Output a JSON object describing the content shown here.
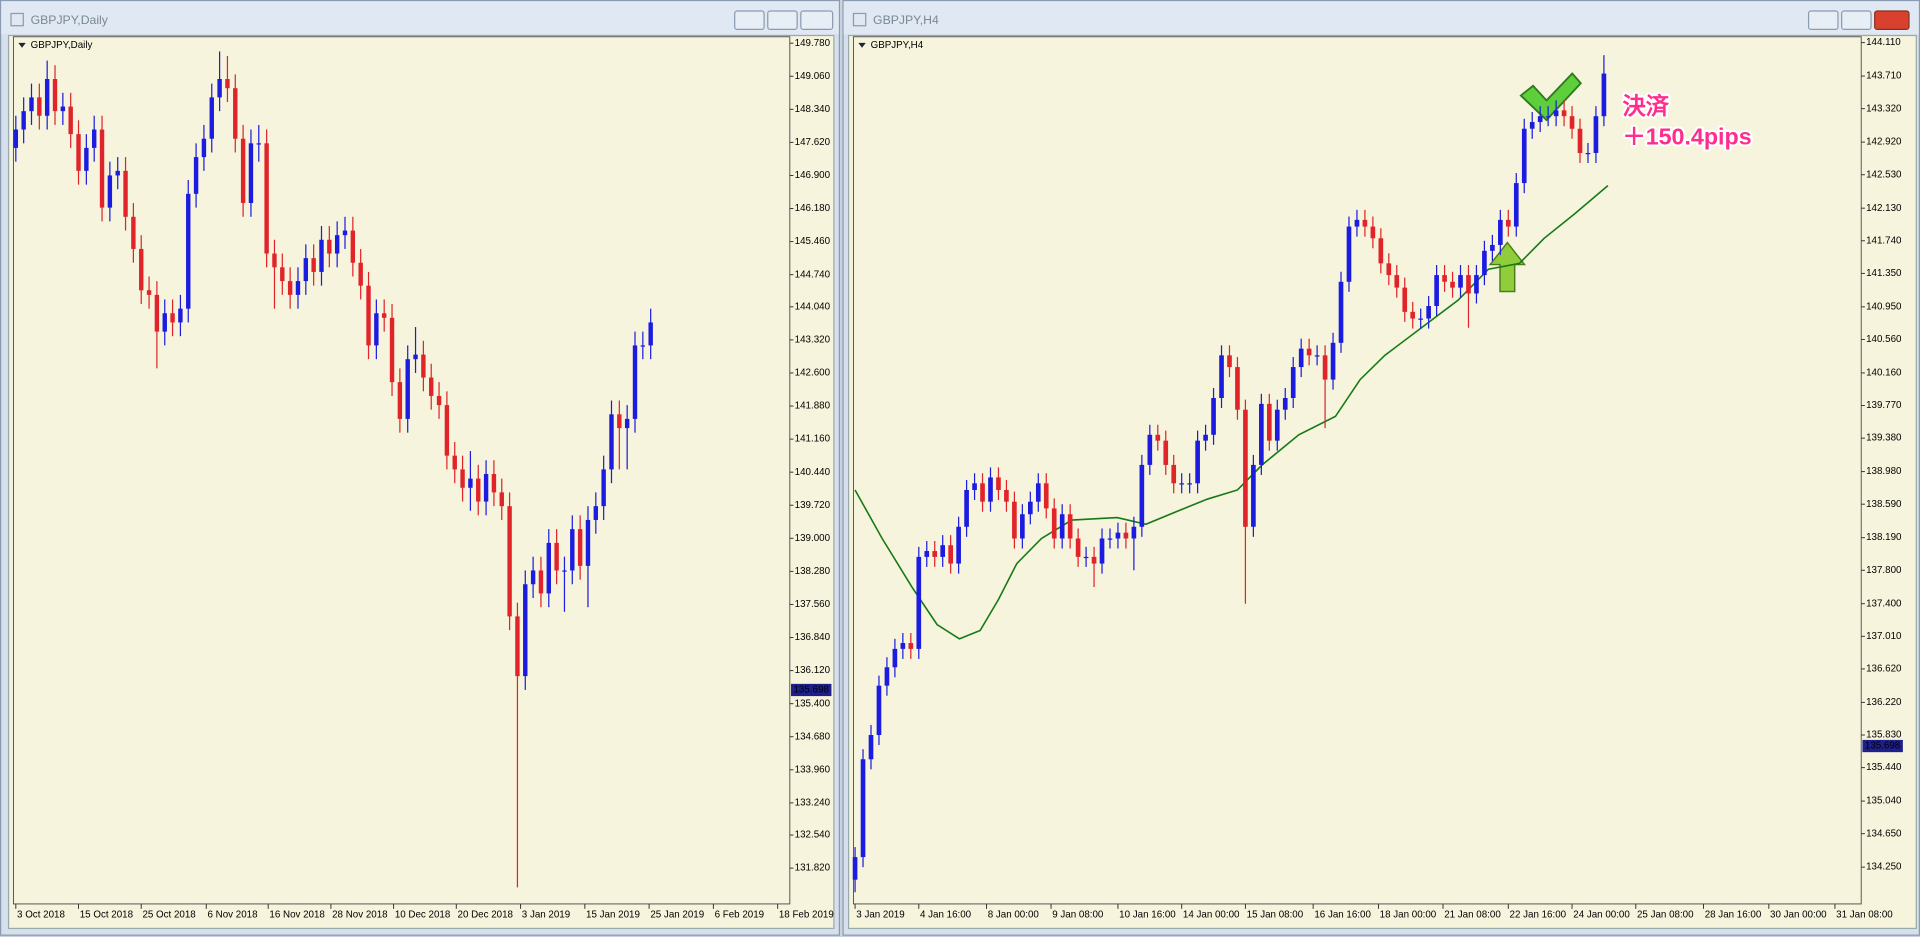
{
  "windows": [
    {
      "title": "GBPJPY,Daily"
    },
    {
      "title": "GBPJPY,H4"
    }
  ],
  "chart_data": [
    {
      "type": "candlestick",
      "label": "GBPJPY,Daily",
      "up_color": "#1c1ce0",
      "down_color": "#e0242a",
      "xlim": [
        -0.3,
        98.75
      ],
      "ylim": [
        131.04,
        149.92
      ],
      "xticks": [
        {
          "value": 0,
          "label": "3 Oct 2018"
        },
        {
          "value": 8,
          "label": "15 Oct 2018"
        },
        {
          "value": 16,
          "label": "25 Oct 2018"
        },
        {
          "value": 24.3,
          "label": "6 Nov 2018"
        },
        {
          "value": 32.2,
          "label": "16 Nov 2018"
        },
        {
          "value": 40.2,
          "label": "28 Nov 2018"
        },
        {
          "value": 48.2,
          "label": "10 Dec 2018"
        },
        {
          "value": 56.2,
          "label": "20 Dec 2018"
        },
        {
          "value": 64.4,
          "label": "3 Jan 2019"
        },
        {
          "value": 72.6,
          "label": "15 Jan 2019"
        },
        {
          "value": 80.8,
          "label": "25 Jan 2019"
        },
        {
          "value": 89,
          "label": "6 Feb 2019"
        },
        {
          "value": 97.2,
          "label": "18 Feb 2019"
        }
      ],
      "yticks": [
        {
          "value": 149.78,
          "label": "149.780"
        },
        {
          "value": 149.06,
          "label": "149.060"
        },
        {
          "value": 148.34,
          "label": "148.340"
        },
        {
          "value": 147.62,
          "label": "147.620"
        },
        {
          "value": 146.9,
          "label": "146.900"
        },
        {
          "value": 146.18,
          "label": "146.180"
        },
        {
          "value": 145.46,
          "label": "145.460"
        },
        {
          "value": 144.74,
          "label": "144.740"
        },
        {
          "value": 144.04,
          "label": "144.040"
        },
        {
          "value": 143.32,
          "label": "143.320"
        },
        {
          "value": 142.6,
          "label": "142.600"
        },
        {
          "value": 141.88,
          "label": "141.880"
        },
        {
          "value": 141.16,
          "label": "141.160"
        },
        {
          "value": 140.44,
          "label": "140.440"
        },
        {
          "value": 139.72,
          "label": "139.720"
        },
        {
          "value": 139,
          "label": "139.000"
        },
        {
          "value": 138.28,
          "label": "138.280"
        },
        {
          "value": 137.56,
          "label": "137.560"
        },
        {
          "value": 136.84,
          "label": "136.840"
        },
        {
          "value": 136.12,
          "label": "136.120"
        },
        {
          "value": 135.4,
          "label": "135.400"
        },
        {
          "value": 134.68,
          "label": "134.680"
        },
        {
          "value": 133.96,
          "label": "133.960"
        },
        {
          "value": 133.24,
          "label": "133.240"
        },
        {
          "value": 132.54,
          "label": "132.540"
        },
        {
          "value": 131.82,
          "label": "131.820"
        }
      ],
      "price_label": 135.698,
      "open": [
        147.5,
        147.9,
        148.3,
        148.6,
        148.2,
        149.0,
        148.3,
        148.4,
        147.8,
        147.0,
        147.5,
        147.9,
        146.2,
        146.9,
        147.0,
        146.0,
        145.3,
        144.4,
        144.3,
        143.5,
        143.9,
        143.7,
        144.0,
        146.5,
        147.3,
        147.7,
        148.6,
        149.0,
        148.8,
        147.7,
        146.3,
        147.6,
        147.6,
        145.2,
        144.9,
        144.6,
        144.3,
        144.6,
        145.1,
        144.8,
        145.5,
        145.2,
        145.6,
        145.7,
        145.0,
        144.5,
        143.2,
        143.9,
        143.8,
        142.4,
        141.6,
        142.9,
        143.0,
        142.5,
        142.1,
        141.9,
        140.8,
        140.5,
        140.1,
        140.3,
        139.8,
        140.4,
        140.0,
        139.7,
        137.3,
        136.0,
        138.0,
        138.3,
        137.8,
        138.9,
        138.3,
        138.3,
        139.2,
        138.4,
        139.4,
        139.7,
        140.5,
        141.7,
        141.4,
        141.6,
        143.2,
        143.2
      ],
      "high": [
        148.2,
        148.6,
        148.9,
        148.9,
        149.4,
        149.3,
        148.7,
        148.7,
        148.1,
        147.8,
        148.2,
        148.2,
        147.2,
        147.3,
        147.3,
        146.3,
        145.6,
        144.7,
        144.6,
        144.2,
        144.2,
        144.3,
        146.8,
        147.6,
        148.0,
        148.9,
        149.6,
        149.5,
        149.1,
        148.0,
        147.9,
        148.0,
        147.9,
        145.5,
        145.2,
        144.9,
        144.9,
        145.4,
        145.4,
        145.8,
        145.8,
        145.9,
        146.0,
        146.0,
        145.3,
        144.8,
        144.2,
        144.2,
        144.1,
        142.7,
        143.2,
        143.6,
        143.3,
        142.8,
        142.4,
        142.2,
        141.1,
        140.8,
        140.9,
        140.6,
        140.7,
        140.7,
        140.3,
        140.0,
        137.6,
        138.3,
        138.6,
        138.6,
        139.2,
        139.2,
        138.6,
        139.5,
        139.5,
        139.7,
        140.0,
        140.8,
        142.0,
        142.0,
        141.9,
        143.5,
        143.5,
        144.0
      ],
      "low": [
        147.2,
        147.6,
        148.0,
        147.9,
        147.9,
        148.0,
        148.0,
        147.5,
        146.7,
        146.7,
        147.2,
        145.9,
        145.9,
        146.6,
        145.7,
        145.0,
        144.1,
        144.0,
        142.7,
        143.2,
        143.4,
        143.4,
        143.7,
        146.2,
        147.0,
        147.4,
        148.3,
        148.5,
        147.4,
        146.0,
        146.0,
        147.2,
        144.9,
        144.0,
        144.3,
        144.0,
        144.0,
        144.3,
        144.5,
        144.5,
        144.9,
        144.9,
        145.3,
        144.7,
        144.2,
        142.9,
        142.9,
        143.5,
        142.1,
        141.3,
        141.3,
        142.6,
        142.2,
        141.8,
        141.6,
        140.5,
        140.2,
        139.8,
        139.6,
        139.5,
        139.5,
        139.7,
        139.4,
        137.0,
        131.4,
        135.7,
        137.7,
        137.5,
        137.5,
        138.0,
        137.4,
        138.0,
        138.1,
        137.5,
        139.1,
        139.4,
        140.2,
        140.5,
        140.5,
        141.3,
        142.9,
        142.9
      ],
      "close": [
        147.9,
        148.3,
        148.6,
        148.2,
        149.0,
        148.3,
        148.4,
        147.8,
        147.0,
        147.5,
        147.9,
        146.2,
        146.9,
        147.0,
        146.0,
        145.3,
        144.4,
        144.3,
        143.5,
        143.9,
        143.7,
        144.0,
        146.5,
        147.3,
        147.7,
        148.6,
        149.0,
        148.8,
        147.7,
        146.3,
        147.6,
        147.6,
        145.2,
        144.9,
        144.6,
        144.3,
        144.6,
        145.1,
        144.8,
        145.5,
        145.2,
        145.6,
        145.7,
        145.0,
        144.5,
        143.2,
        143.9,
        143.8,
        142.4,
        141.6,
        142.9,
        143.0,
        142.5,
        142.1,
        141.9,
        140.8,
        140.5,
        140.1,
        140.3,
        139.8,
        140.4,
        140.0,
        139.7,
        137.3,
        136.0,
        138.0,
        138.3,
        137.8,
        138.9,
        138.3,
        138.3,
        139.2,
        138.4,
        139.4,
        139.7,
        140.5,
        141.7,
        141.4,
        141.6,
        143.2,
        143.2,
        143.7
      ]
    },
    {
      "type": "candlestick",
      "label": "GBPJPY,H4",
      "up_color": "#1c1ce0",
      "down_color": "#e0242a",
      "xlim": [
        -0.2,
        126.3
      ],
      "ylim": [
        133.81,
        144.18
      ],
      "xticks": [
        {
          "value": 0,
          "label": "3 Jan 2019"
        },
        {
          "value": 8,
          "label": "4 Jan 16:00"
        },
        {
          "value": 16.5,
          "label": "8 Jan 00:00"
        },
        {
          "value": 24.6,
          "label": "9 Jan 08:00"
        },
        {
          "value": 33,
          "label": "10 Jan 16:00"
        },
        {
          "value": 41,
          "label": "14 Jan 00:00"
        },
        {
          "value": 49,
          "label": "15 Jan 08:00"
        },
        {
          "value": 57.5,
          "label": "16 Jan 16:00"
        },
        {
          "value": 65.7,
          "label": "18 Jan 00:00"
        },
        {
          "value": 73.8,
          "label": "21 Jan 08:00"
        },
        {
          "value": 82,
          "label": "22 Jan 16:00"
        },
        {
          "value": 90,
          "label": "24 Jan 00:00"
        },
        {
          "value": 98,
          "label": "25 Jan 08:00"
        },
        {
          "value": 106.5,
          "label": "28 Jan 16:00"
        },
        {
          "value": 114.7,
          "label": "30 Jan 00:00"
        },
        {
          "value": 123,
          "label": "31 Jan 08:00"
        }
      ],
      "yticks": [
        {
          "value": 144.11,
          "label": "144.110"
        },
        {
          "value": 143.71,
          "label": "143.710"
        },
        {
          "value": 143.32,
          "label": "143.320"
        },
        {
          "value": 142.92,
          "label": "142.920"
        },
        {
          "value": 142.53,
          "label": "142.530"
        },
        {
          "value": 142.13,
          "label": "142.130"
        },
        {
          "value": 141.74,
          "label": "141.740"
        },
        {
          "value": 141.35,
          "label": "141.350"
        },
        {
          "value": 140.95,
          "label": "140.950"
        },
        {
          "value": 140.56,
          "label": "140.560"
        },
        {
          "value": 140.16,
          "label": "140.160"
        },
        {
          "value": 139.77,
          "label": "139.770"
        },
        {
          "value": 139.38,
          "label": "139.380"
        },
        {
          "value": 138.98,
          "label": "138.980"
        },
        {
          "value": 138.59,
          "label": "138.590"
        },
        {
          "value": 138.19,
          "label": "138.190"
        },
        {
          "value": 137.8,
          "label": "137.800"
        },
        {
          "value": 137.4,
          "label": "137.400"
        },
        {
          "value": 137.01,
          "label": "137.010"
        },
        {
          "value": 136.62,
          "label": "136.620"
        },
        {
          "value": 136.22,
          "label": "136.220"
        },
        {
          "value": 135.83,
          "label": "135.830"
        },
        {
          "value": 135.44,
          "label": "135.440"
        },
        {
          "value": 135.04,
          "label": "135.040"
        },
        {
          "value": 134.65,
          "label": "134.650"
        },
        {
          "value": 134.25,
          "label": "134.250"
        }
      ],
      "price_label": 135.698,
      "open": [
        134.1,
        134.37,
        135.54,
        135.83,
        136.42,
        136.64,
        136.86,
        136.93,
        136.86,
        137.96,
        138.03,
        137.96,
        138.1,
        137.88,
        138.32,
        138.76,
        138.84,
        138.62,
        138.91,
        138.76,
        138.62,
        138.18,
        138.47,
        138.62,
        138.84,
        138.54,
        138.18,
        138.47,
        138.18,
        137.96,
        137.96,
        137.88,
        138.18,
        138.18,
        138.25,
        138.18,
        138.32,
        139.06,
        139.42,
        139.35,
        139.06,
        138.84,
        138.84,
        138.84,
        139.35,
        139.42,
        139.86,
        140.37,
        140.23,
        139.72,
        138.32,
        139.06,
        139.79,
        139.35,
        139.72,
        139.86,
        140.23,
        140.45,
        140.37,
        140.37,
        140.08,
        140.52,
        141.25,
        141.91,
        141.99,
        141.91,
        141.77,
        141.47,
        141.33,
        141.18,
        140.89,
        140.81,
        140.81,
        140.96,
        141.33,
        141.25,
        141.18,
        141.33,
        141.11,
        141.33,
        141.62,
        141.69,
        141.99,
        141.91,
        142.43,
        143.08,
        143.16,
        143.23,
        143.23,
        143.3,
        143.23,
        143.08,
        142.79,
        142.79,
        143.23
      ],
      "high": [
        134.49,
        135.66,
        135.95,
        136.54,
        136.76,
        136.98,
        137.05,
        137.05,
        138.08,
        138.15,
        138.15,
        138.22,
        138.22,
        138.44,
        138.88,
        138.96,
        138.96,
        139.03,
        139.03,
        138.88,
        138.74,
        138.59,
        138.74,
        138.96,
        138.96,
        138.66,
        138.59,
        138.59,
        138.3,
        138.08,
        138.08,
        138.3,
        138.3,
        138.37,
        138.37,
        138.44,
        139.18,
        139.54,
        139.54,
        139.47,
        139.18,
        138.96,
        138.96,
        139.47,
        139.54,
        139.98,
        140.49,
        140.49,
        140.35,
        139.84,
        139.18,
        139.91,
        139.91,
        139.84,
        139.98,
        140.35,
        140.57,
        140.57,
        140.49,
        140.49,
        140.64,
        141.37,
        142.03,
        142.11,
        142.11,
        142.03,
        141.89,
        141.59,
        141.45,
        141.3,
        141.01,
        140.93,
        141.08,
        141.45,
        141.45,
        141.37,
        141.45,
        141.45,
        141.45,
        141.74,
        141.81,
        142.11,
        142.11,
        142.55,
        143.2,
        143.28,
        143.35,
        143.35,
        143.42,
        143.42,
        143.35,
        143.2,
        142.91,
        143.35,
        143.96
      ],
      "low": [
        133.95,
        134.25,
        135.42,
        135.71,
        136.3,
        136.52,
        136.74,
        136.74,
        136.74,
        137.84,
        137.84,
        137.84,
        137.76,
        137.76,
        138.2,
        138.64,
        138.5,
        138.5,
        138.64,
        138.5,
        138.06,
        138.06,
        138.35,
        138.5,
        138.42,
        138.06,
        138.06,
        138.06,
        137.84,
        137.84,
        137.6,
        137.76,
        138.06,
        138.06,
        138.06,
        137.8,
        138.2,
        138.94,
        139.23,
        138.94,
        138.72,
        138.72,
        138.72,
        138.72,
        139.23,
        139.3,
        139.74,
        140.11,
        139.6,
        137.4,
        138.2,
        138.94,
        139.23,
        139.23,
        139.6,
        139.74,
        140.11,
        140.25,
        140.25,
        139.5,
        139.96,
        140.4,
        141.13,
        141.79,
        141.79,
        141.65,
        141.35,
        141.21,
        141.06,
        140.77,
        140.69,
        140.69,
        140.69,
        140.84,
        141.13,
        141.06,
        141.06,
        140.7,
        140.99,
        141.21,
        141.5,
        141.57,
        141.79,
        141.79,
        142.31,
        142.96,
        143.04,
        143.11,
        143.11,
        143.11,
        142.96,
        142.67,
        142.67,
        142.67,
        143.11
      ],
      "close": [
        134.37,
        135.54,
        135.83,
        136.42,
        136.64,
        136.86,
        136.93,
        136.86,
        137.96,
        138.03,
        137.96,
        138.1,
        137.88,
        138.32,
        138.76,
        138.84,
        138.62,
        138.91,
        138.76,
        138.62,
        138.18,
        138.47,
        138.62,
        138.84,
        138.54,
        138.18,
        138.47,
        138.18,
        137.96,
        137.96,
        137.88,
        138.18,
        138.18,
        138.25,
        138.18,
        138.32,
        139.06,
        139.42,
        139.35,
        139.06,
        138.84,
        138.84,
        138.84,
        139.35,
        139.42,
        139.86,
        140.37,
        140.23,
        139.72,
        138.32,
        139.06,
        139.79,
        139.35,
        139.72,
        139.86,
        140.23,
        140.45,
        140.37,
        140.37,
        140.08,
        140.52,
        141.25,
        141.91,
        141.99,
        141.91,
        141.77,
        141.47,
        141.33,
        141.18,
        140.89,
        140.81,
        140.81,
        140.96,
        141.33,
        141.25,
        141.18,
        141.33,
        141.11,
        141.33,
        141.62,
        141.69,
        141.99,
        141.91,
        142.43,
        143.08,
        143.16,
        143.23,
        143.23,
        143.3,
        143.23,
        143.08,
        142.79,
        142.79,
        143.23,
        143.74
      ],
      "indicator": {
        "color": "#157a15",
        "x": [
          0,
          3.4,
          7.2,
          10.3,
          13.1,
          15.7,
          18,
          20.3,
          23.4,
          27.2,
          32.9,
          36.5,
          40.3,
          44.2,
          48,
          51.1,
          55.7,
          60.3,
          63.4,
          66.5,
          71.1,
          75.7,
          79.5,
          83.4,
          86.5,
          90.3,
          94.5
        ],
        "values": [
          138.76,
          138.18,
          137.59,
          137.15,
          136.98,
          137.08,
          137.45,
          137.88,
          138.18,
          138.4,
          138.43,
          138.35,
          138.5,
          138.65,
          138.76,
          139.06,
          139.42,
          139.64,
          140.08,
          140.37,
          140.7,
          141.03,
          141.4,
          141.47,
          141.77,
          142.06,
          142.4
        ]
      },
      "annotations": [
        "決済",
        "＋150.4pips"
      ]
    }
  ]
}
